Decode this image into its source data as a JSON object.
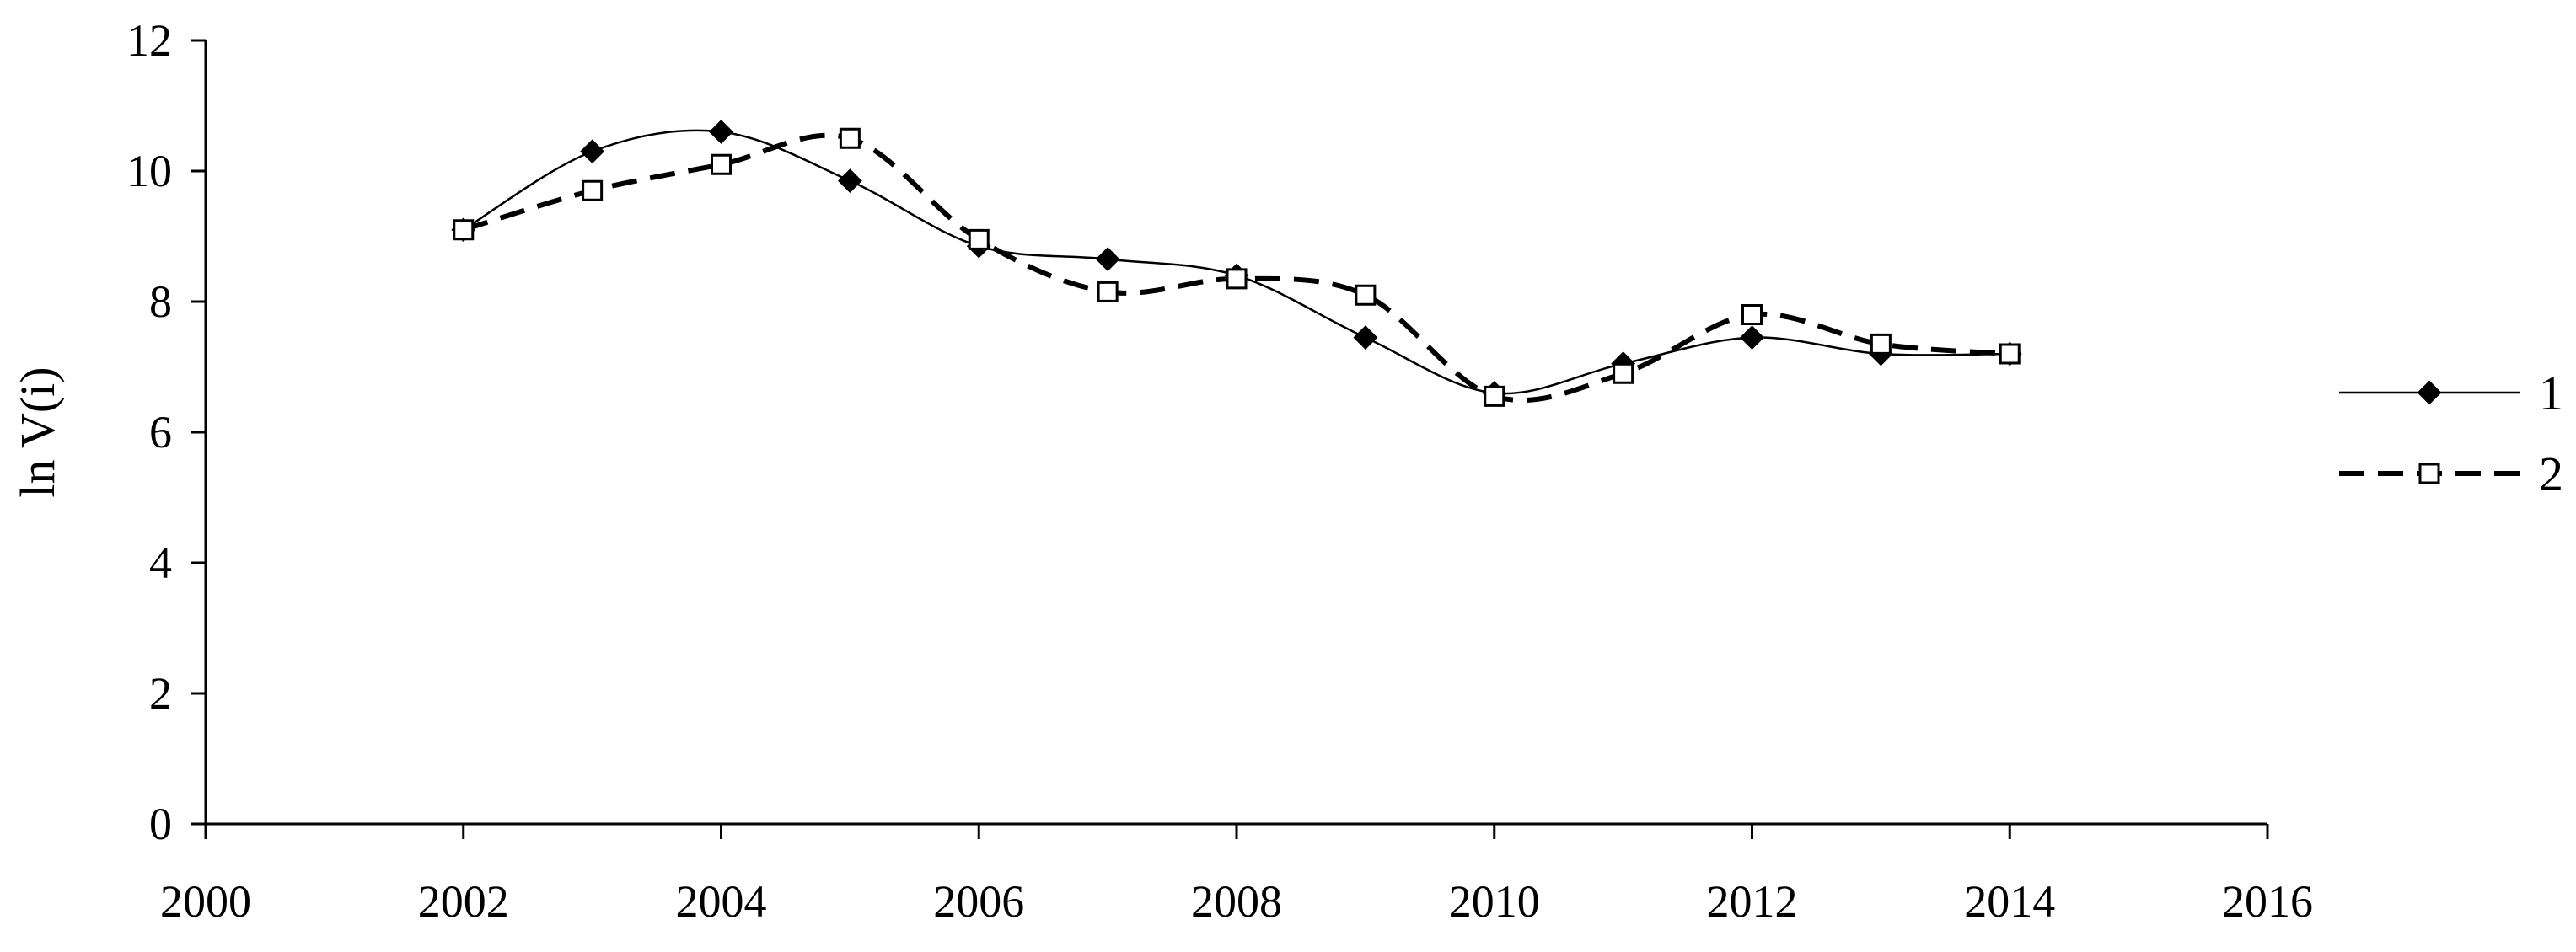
{
  "chart_data": {
    "type": "line",
    "ylabel": "ln V(i)",
    "xlabel": "",
    "xlim": [
      2000,
      2016
    ],
    "ylim": [
      0,
      12
    ],
    "xticks": [
      2000,
      2002,
      2004,
      2006,
      2008,
      2010,
      2012,
      2014,
      2016
    ],
    "yticks": [
      0,
      2,
      4,
      6,
      8,
      10,
      12
    ],
    "grid": false,
    "legend_position": "right",
    "series": [
      {
        "name": "1",
        "marker": "filled-diamond",
        "line_style": "solid-smooth",
        "color": "#000000",
        "x": [
          2002,
          2003,
          2004,
          2005,
          2006,
          2007,
          2008,
          2009,
          2010,
          2011,
          2012,
          2013,
          2014
        ],
        "y": [
          9.1,
          10.3,
          10.6,
          9.85,
          8.85,
          8.65,
          8.4,
          7.45,
          6.6,
          7.05,
          7.45,
          7.2,
          7.2
        ]
      },
      {
        "name": "2",
        "marker": "open-square",
        "line_style": "dashed-smooth",
        "color": "#000000",
        "x": [
          2002,
          2003,
          2004,
          2005,
          2006,
          2007,
          2008,
          2009,
          2010,
          2011,
          2012,
          2013,
          2014
        ],
        "y": [
          9.1,
          9.7,
          10.1,
          10.5,
          8.95,
          8.15,
          8.35,
          8.1,
          6.55,
          6.9,
          7.8,
          7.35,
          7.2
        ]
      }
    ]
  }
}
